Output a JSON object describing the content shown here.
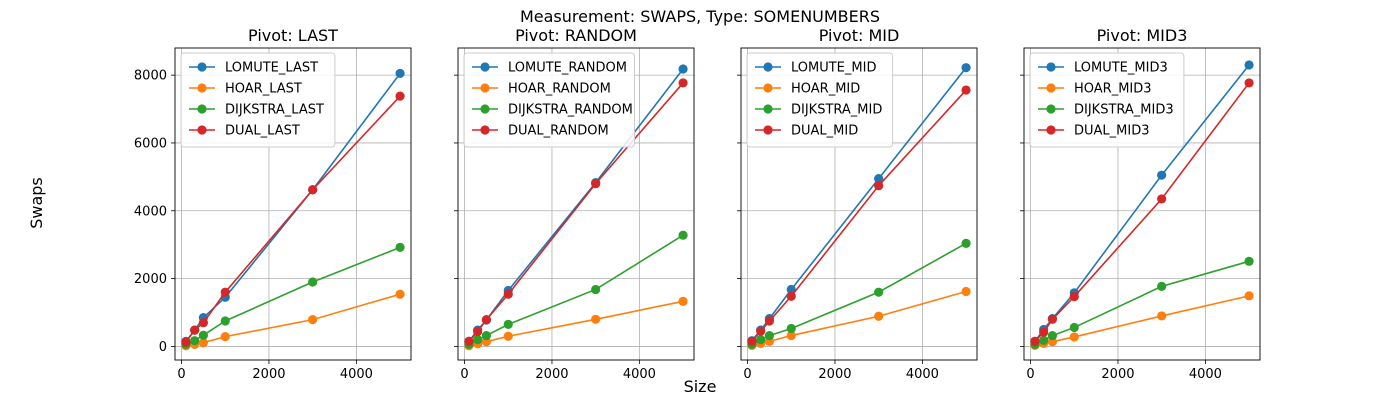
{
  "figure": {
    "suptitle": "Measurement: SWAPS, Type: SOMENUMBERS",
    "xlabel": "Size",
    "ylabel": "Swaps"
  },
  "chart_data": [
    {
      "type": "line",
      "title": "Pivot: LAST",
      "x": [
        100,
        300,
        500,
        1000,
        3000,
        5000
      ],
      "xlim": [
        -150,
        5250
      ],
      "ylim": [
        -400,
        8800
      ],
      "xticks": [
        0,
        2000,
        4000
      ],
      "yticks": [
        0,
        2000,
        4000,
        6000,
        8000
      ],
      "grid": true,
      "legend": "upper-left",
      "series": [
        {
          "name": "LOMUTE_LAST",
          "color": "#1f77b4",
          "values": [
            150,
            480,
            850,
            1450,
            4620,
            8050
          ]
        },
        {
          "name": "HOAR_LAST",
          "color": "#ff7f0e",
          "values": [
            20,
            60,
            110,
            290,
            790,
            1540
          ]
        },
        {
          "name": "DIJKSTRA_LAST",
          "color": "#2ca02c",
          "values": [
            60,
            170,
            330,
            750,
            1900,
            2920
          ]
        },
        {
          "name": "DUAL_LAST",
          "color": "#d62728",
          "values": [
            130,
            480,
            700,
            1600,
            4620,
            7380
          ]
        }
      ]
    },
    {
      "type": "line",
      "title": "Pivot: RANDOM",
      "x": [
        100,
        300,
        500,
        1000,
        3000,
        5000
      ],
      "xlim": [
        -150,
        5250
      ],
      "ylim": [
        -400,
        8800
      ],
      "xticks": [
        0,
        2000,
        4000
      ],
      "yticks": [
        0,
        2000,
        4000,
        6000,
        8000
      ],
      "grid": true,
      "legend": "upper-left",
      "series": [
        {
          "name": "LOMUTE_RANDOM",
          "color": "#1f77b4",
          "values": [
            150,
            480,
            780,
            1650,
            4830,
            8180
          ]
        },
        {
          "name": "HOAR_RANDOM",
          "color": "#ff7f0e",
          "values": [
            20,
            80,
            140,
            300,
            800,
            1330
          ]
        },
        {
          "name": "DIJKSTRA_RANDOM",
          "color": "#2ca02c",
          "values": [
            60,
            200,
            320,
            650,
            1680,
            3280
          ]
        },
        {
          "name": "DUAL_RANDOM",
          "color": "#d62728",
          "values": [
            150,
            440,
            790,
            1540,
            4800,
            7770
          ]
        }
      ]
    },
    {
      "type": "line",
      "title": "Pivot: MID",
      "x": [
        100,
        300,
        500,
        1000,
        3000,
        5000
      ],
      "xlim": [
        -150,
        5250
      ],
      "ylim": [
        -400,
        8800
      ],
      "xticks": [
        0,
        2000,
        4000
      ],
      "yticks": [
        0,
        2000,
        4000,
        6000,
        8000
      ],
      "grid": true,
      "legend": "upper-left",
      "series": [
        {
          "name": "LOMUTE_MID",
          "color": "#1f77b4",
          "values": [
            170,
            480,
            820,
            1680,
            4950,
            8220
          ]
        },
        {
          "name": "HOAR_MID",
          "color": "#ff7f0e",
          "values": [
            30,
            90,
            150,
            320,
            890,
            1620
          ]
        },
        {
          "name": "DIJKSTRA_MID",
          "color": "#2ca02c",
          "values": [
            60,
            200,
            320,
            530,
            1600,
            3040
          ]
        },
        {
          "name": "DUAL_MID",
          "color": "#d62728",
          "values": [
            150,
            450,
            750,
            1480,
            4740,
            7560
          ]
        }
      ]
    },
    {
      "type": "line",
      "title": "Pivot: MID3",
      "x": [
        100,
        300,
        500,
        1000,
        3000,
        5000
      ],
      "xlim": [
        -150,
        5250
      ],
      "ylim": [
        -400,
        8800
      ],
      "xticks": [
        0,
        2000,
        4000
      ],
      "yticks": [
        0,
        2000,
        4000,
        6000,
        8000
      ],
      "grid": true,
      "legend": "upper-left",
      "series": [
        {
          "name": "LOMUTE_MID3",
          "color": "#1f77b4",
          "values": [
            150,
            500,
            820,
            1580,
            5050,
            8300
          ]
        },
        {
          "name": "HOAR_MID3",
          "color": "#ff7f0e",
          "values": [
            30,
            90,
            140,
            280,
            900,
            1490
          ]
        },
        {
          "name": "DIJKSTRA_MID3",
          "color": "#2ca02c",
          "values": [
            60,
            180,
            320,
            560,
            1770,
            2510
          ]
        },
        {
          "name": "DUAL_MID3",
          "color": "#d62728",
          "values": [
            150,
            420,
            800,
            1470,
            4350,
            7770
          ]
        }
      ]
    }
  ]
}
